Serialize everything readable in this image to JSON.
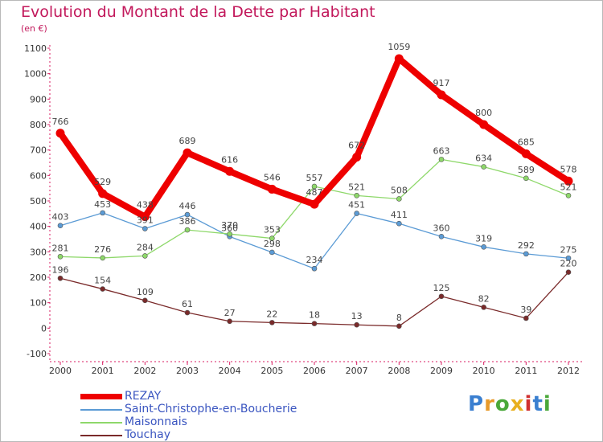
{
  "header": {
    "title": "Evolution du Montant de la Dette par Habitant",
    "unit": "(en €)"
  },
  "logo": {
    "text": "Proxiti",
    "colors": [
      "#3a7fd0",
      "#e89a2a",
      "#4aa83a",
      "#e8b020",
      "#d03030",
      "#3a7fd0",
      "#4aa83a"
    ]
  },
  "chart_data": {
    "type": "line",
    "title": "Evolution du Montant de la Dette par Habitant",
    "subtitle": "(en €)",
    "xlabel": "",
    "ylabel": "",
    "x": [
      "2000",
      "2001",
      "2002",
      "2003",
      "2004",
      "2005",
      "2006",
      "2007",
      "2008",
      "2009",
      "2010",
      "2011",
      "2012"
    ],
    "ylim": [
      -100,
      1100
    ],
    "yticks": [
      -100,
      0,
      100,
      200,
      300,
      400,
      500,
      600,
      700,
      800,
      900,
      1000,
      1100
    ],
    "grid": false,
    "legend": "bottom-left",
    "series": [
      {
        "name": "REZAY",
        "color": "#ee0000",
        "values": [
          766,
          529,
          438,
          689,
          616,
          546,
          487,
          672,
          1059,
          917,
          800,
          685,
          578
        ]
      },
      {
        "name": "Saint-Christophe-en-Boucherie",
        "color": "#5b9bd5",
        "values": [
          403,
          453,
          391,
          446,
          360,
          298,
          234,
          451,
          411,
          360,
          319,
          292,
          275
        ]
      },
      {
        "name": "Maisonnais",
        "color": "#8ed86a",
        "values": [
          281,
          276,
          284,
          386,
          370,
          353,
          557,
          521,
          508,
          663,
          634,
          589,
          521
        ]
      },
      {
        "name": "Touchay",
        "color": "#7a2a2a",
        "values": [
          196,
          154,
          109,
          61,
          27,
          22,
          18,
          13,
          8,
          125,
          82,
          39,
          220
        ]
      }
    ]
  }
}
